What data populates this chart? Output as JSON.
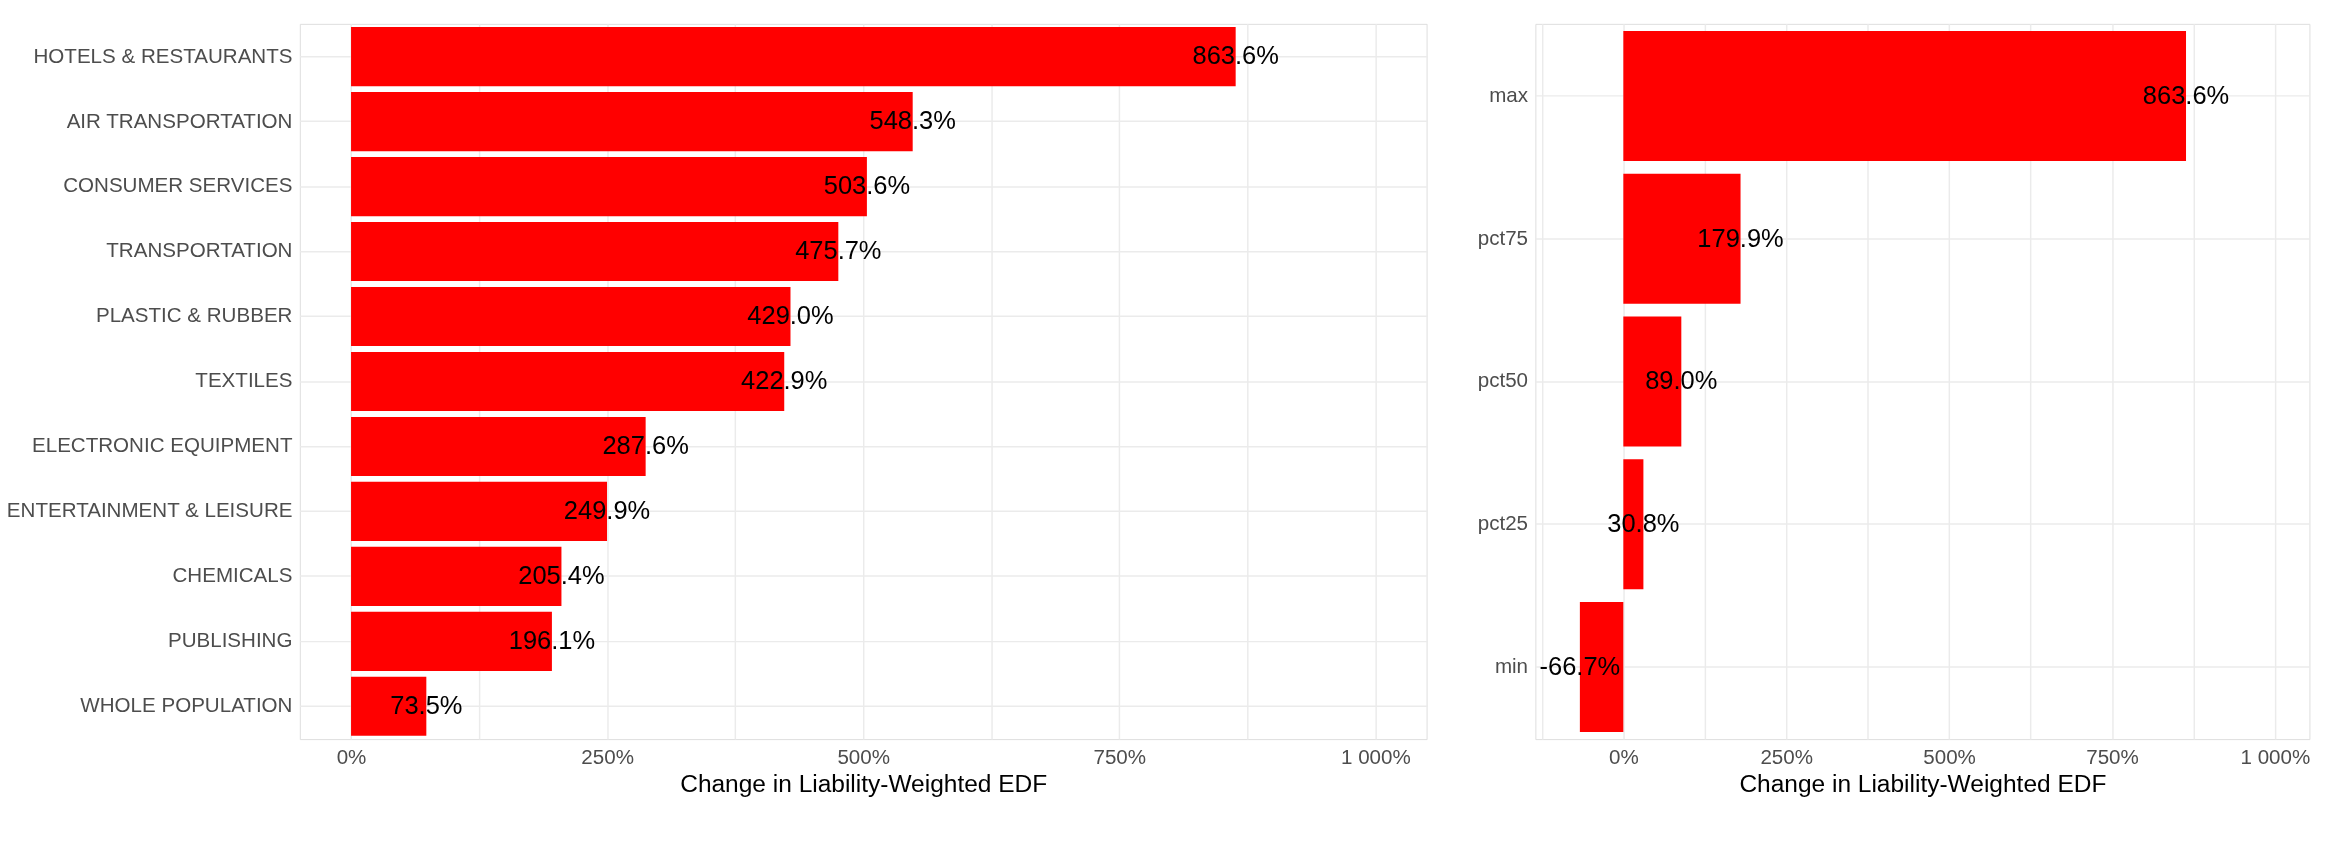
{
  "chart_data": [
    {
      "type": "bar",
      "orientation": "horizontal",
      "xlabel": "Change in Liability-Weighted EDF",
      "categories": [
        "HOTELS & RESTAURANTS",
        "AIR TRANSPORTATION",
        "CONSUMER SERVICES",
        "TRANSPORTATION",
        "PLASTIC & RUBBER",
        "TEXTILES",
        "ELECTRONIC EQUIPMENT",
        "ENTERTAINMENT & LEISURE",
        "CHEMICALS",
        "PUBLISHING",
        "WHOLE POPULATION"
      ],
      "values": [
        863.6,
        548.3,
        503.6,
        475.7,
        429.0,
        422.9,
        287.6,
        249.9,
        205.4,
        196.1,
        73.5
      ],
      "value_labels": [
        "863.6%",
        "548.3%",
        "503.6%",
        "475.7%",
        "429.0%",
        "422.9%",
        "287.6%",
        "249.9%",
        "205.4%",
        "196.1%",
        "73.5%"
      ],
      "color": "#ff0000",
      "xlim": [
        -50,
        1050
      ],
      "xticks": [
        {
          "value": 0,
          "label": "0%"
        },
        {
          "value": 125,
          "label": null
        },
        {
          "value": 250,
          "label": "250%"
        },
        {
          "value": 375,
          "label": null
        },
        {
          "value": 500,
          "label": "500%"
        },
        {
          "value": 625,
          "label": null
        },
        {
          "value": 750,
          "label": "750%"
        },
        {
          "value": 875,
          "label": null
        },
        {
          "value": 1000,
          "label": "1 000%"
        }
      ],
      "grid": true
    },
    {
      "type": "bar",
      "orientation": "horizontal",
      "xlabel": "Change in Liability-Weighted EDF",
      "categories": [
        "max",
        "pct75",
        "pct50",
        "pct25",
        "min"
      ],
      "values": [
        863.6,
        179.9,
        89.0,
        30.8,
        -66.7
      ],
      "value_labels": [
        "863.6%",
        "179.9%",
        "89.0%",
        "30.8%",
        "-66.7%"
      ],
      "color": "#ff0000",
      "xlim": [
        -135,
        1053
      ],
      "xticks": [
        {
          "value": -125,
          "label": null
        },
        {
          "value": 0,
          "label": "0%"
        },
        {
          "value": 125,
          "label": null
        },
        {
          "value": 250,
          "label": "250%"
        },
        {
          "value": 375,
          "label": null
        },
        {
          "value": 500,
          "label": "500%"
        },
        {
          "value": 625,
          "label": null
        },
        {
          "value": 750,
          "label": "750%"
        },
        {
          "value": 875,
          "label": null
        },
        {
          "value": 1000,
          "label": "1 000%"
        }
      ],
      "grid": true
    }
  ]
}
